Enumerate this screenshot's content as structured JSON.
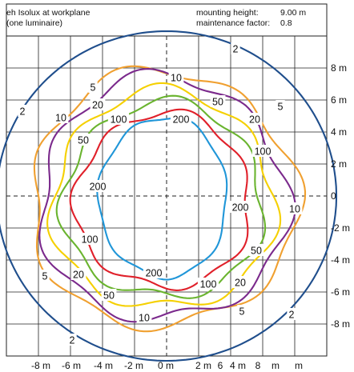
{
  "header": {
    "title_line1": "eh Isolux at workplane",
    "title_line2": "(one luminaire)",
    "mounting_label": "mounting height:",
    "mounting_value": "9.00 m",
    "maintenance_label": "maintenance factor:",
    "maintenance_value": "0.8"
  },
  "chart_data": {
    "type": "contour",
    "title": "eh Isolux at workplane (one luminaire)",
    "xlim": [
      -10,
      10
    ],
    "ylim": [
      -10,
      10
    ],
    "grid": true,
    "x_tick_labels": [
      "-8 m",
      "-6 m",
      "-4 m",
      "-2 m",
      "0 m",
      "2 m",
      "6",
      "4 m",
      "8",
      "m",
      "m"
    ],
    "y_tick_labels": [
      "8 m",
      "6 m",
      "4 m",
      "2 m",
      "0",
      "-2 m",
      "-4 m",
      "-6 m",
      "-8 m"
    ],
    "levels": [
      {
        "level": "2",
        "color": "#1f4e8c",
        "labels": [
          {
            "text": "2",
            "x": 4.3,
            "y": 9.2
          },
          {
            "text": "2",
            "x": -9.0,
            "y": 5.3
          },
          {
            "text": "2",
            "x": 7.8,
            "y": -7.4
          },
          {
            "text": "2",
            "x": -5.9,
            "y": -9.0
          }
        ]
      },
      {
        "level": "5",
        "color": "#f0a030",
        "labels": [
          {
            "text": "5",
            "x": -4.6,
            "y": 6.8
          },
          {
            "text": "5",
            "x": 7.1,
            "y": 5.6
          },
          {
            "text": "5",
            "x": -7.6,
            "y": -5.0
          },
          {
            "text": "5",
            "x": 4.7,
            "y": -7.2
          }
        ]
      },
      {
        "level": "10",
        "color": "#7b2a8c",
        "labels": [
          {
            "text": "10",
            "x": 0.6,
            "y": 7.4
          },
          {
            "text": "10",
            "x": -6.6,
            "y": 4.9
          },
          {
            "text": "10",
            "x": 8.0,
            "y": -0.8
          },
          {
            "text": "10",
            "x": -1.4,
            "y": -7.6
          }
        ]
      },
      {
        "level": "20",
        "color": "#f5d000",
        "labels": [
          {
            "text": "20",
            "x": -4.3,
            "y": 5.7
          },
          {
            "text": "20",
            "x": 5.5,
            "y": 4.8
          },
          {
            "text": "20",
            "x": -5.5,
            "y": -4.9
          },
          {
            "text": "20",
            "x": 4.6,
            "y": -5.4
          }
        ]
      },
      {
        "level": "50",
        "color": "#6ab42f",
        "labels": [
          {
            "text": "50",
            "x": 3.2,
            "y": 5.9
          },
          {
            "text": "50",
            "x": -5.2,
            "y": 3.5
          },
          {
            "text": "50",
            "x": 5.6,
            "y": -3.4
          },
          {
            "text": "50",
            "x": -3.6,
            "y": -6.2
          }
        ]
      },
      {
        "level": "100",
        "color": "#e0202a",
        "labels": [
          {
            "text": "100",
            "x": -3.0,
            "y": 4.8
          },
          {
            "text": "100",
            "x": 6.0,
            "y": 2.8
          },
          {
            "text": "100",
            "x": -4.8,
            "y": -2.7
          },
          {
            "text": "100",
            "x": 2.6,
            "y": -5.5
          }
        ]
      },
      {
        "level": "200",
        "color": "#2096d8",
        "labels": [
          {
            "text": "200",
            "x": 0.9,
            "y": 4.8
          },
          {
            "text": "200",
            "x": -4.3,
            "y": 0.6
          },
          {
            "text": "200",
            "x": 4.6,
            "y": -0.7
          },
          {
            "text": "200",
            "x": -0.8,
            "y": -4.8
          }
        ]
      }
    ]
  }
}
